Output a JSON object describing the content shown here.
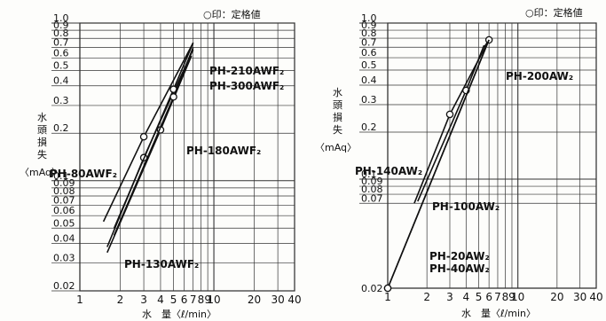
{
  "chart_data": [
    {
      "type": "line",
      "note": "○印：定格値",
      "ylabel_lines": [
        "水",
        "頭",
        "損",
        "失",
        "〈mAq〉"
      ],
      "xlabel": "水　量〈ℓ/min〉",
      "xscale": "log",
      "yscale": "log",
      "xlim": [
        1,
        40
      ],
      "ylim": [
        0.02,
        1.0
      ],
      "xticks": [
        1,
        2,
        3,
        4,
        5,
        6,
        7,
        8,
        9,
        10,
        20,
        30,
        40
      ],
      "xtick_labels": [
        "1",
        "2",
        "3",
        "4",
        "5",
        "6",
        "7",
        "8",
        "9",
        "10",
        "20",
        "30",
        "40"
      ],
      "yticks": [
        0.02,
        0.03,
        0.04,
        0.05,
        0.06,
        0.07,
        0.08,
        0.09,
        0.1,
        0.2,
        0.3,
        0.4,
        0.5,
        0.6,
        0.7,
        0.8,
        0.9,
        1.0
      ],
      "ytick_labels": [
        "0.02",
        "0.03",
        "0.04",
        "0.05",
        "0.06",
        "0.07",
        "0.08",
        "0.09",
        "0.1",
        "0.2",
        "0.3",
        "0.4",
        "0.5",
        "0.6",
        "0.7",
        "0.8",
        "0.9",
        "1.0"
      ],
      "grid": true,
      "series": [
        {
          "name": "PH-80AWF₂",
          "x": [
            1.5,
            3.0,
            7.0
          ],
          "y": [
            0.055,
            0.19,
            0.75
          ],
          "rated": [
            3.0,
            0.19
          ]
        },
        {
          "name": "PH-130AWF₂",
          "x": [
            1.6,
            3.0,
            4.0,
            6.8
          ],
          "y": [
            0.035,
            0.12,
            0.21,
            0.62
          ],
          "rated": [
            4.0,
            0.21
          ]
        },
        {
          "name": "PH-180AWF₂",
          "x": [
            1.6,
            3.0,
            4.0,
            7.0
          ],
          "y": [
            0.038,
            0.14,
            0.24,
            0.68
          ],
          "rated": [
            3.0,
            0.14
          ]
        },
        {
          "name": "PH-210AWF₂",
          "x": [
            1.8,
            5.0,
            7.0
          ],
          "y": [
            0.05,
            0.38,
            0.75
          ],
          "rated": [
            5.0,
            0.38
          ]
        },
        {
          "name": "PH-300AWF₂",
          "x": [
            1.8,
            5.0,
            7.0
          ],
          "y": [
            0.045,
            0.34,
            0.7
          ],
          "rated": [
            5.0,
            0.34
          ]
        }
      ]
    },
    {
      "type": "line",
      "note": "○印：定格値",
      "ylabel_lines": [
        "水",
        "頭",
        "損",
        "失",
        "〈mAq〉"
      ],
      "xlabel": "水　量〈ℓ/min〉",
      "xscale": "log",
      "yscale": "log",
      "xlim": [
        1,
        40
      ],
      "ylim": [
        0.02,
        1.0
      ],
      "xticks": [
        1,
        2,
        3,
        4,
        5,
        6,
        7,
        8,
        9,
        10,
        20,
        30,
        40
      ],
      "xtick_labels": [
        "1",
        "2",
        "3",
        "4",
        "5",
        "6",
        "7",
        "8",
        "9",
        "10",
        "20",
        "30",
        "40"
      ],
      "yticks": [
        0.07,
        0.08,
        0.09,
        0.1,
        0.2,
        0.3,
        0.4,
        0.5,
        0.6,
        0.7,
        0.8,
        0.9,
        1.0
      ],
      "ytick_labels": [
        "0.07",
        "0.08",
        "0.09",
        "0.1",
        "0.2",
        "0.3",
        "0.4",
        "0.5",
        "0.6",
        "0.7",
        "0.8",
        "0.9",
        "1.0"
      ],
      "extra_tick": [
        1,
        0.02
      ],
      "grid": true,
      "series": [
        {
          "name": "PH-140AW₂",
          "x": [
            1.6,
            3.0,
            6.0
          ],
          "y": [
            0.07,
            0.26,
            0.78
          ],
          "rated": [
            3.0,
            0.26
          ]
        },
        {
          "name": "PH-100AW₂",
          "x": [
            1.7,
            4.0,
            5.5
          ],
          "y": [
            0.072,
            0.37,
            0.72
          ],
          "rated": [
            4.0,
            0.37
          ]
        },
        {
          "name": "PH-200AW₂",
          "x": [
            5.5,
            6.0
          ],
          "y": [
            0.7,
            0.78
          ],
          "rated": [
            6.0,
            0.78
          ]
        },
        {
          "name": "PH-20AW₂",
          "x": [
            1.0,
            6.0
          ],
          "y": [
            0.02,
            0.78
          ],
          "rated": [
            1.0,
            0.02
          ]
        },
        {
          "name": "PH-40AW₂",
          "x": [
            1.0,
            6.0
          ],
          "y": [
            0.02,
            0.78
          ],
          "rated": [
            1.0,
            0.02
          ]
        }
      ]
    }
  ]
}
